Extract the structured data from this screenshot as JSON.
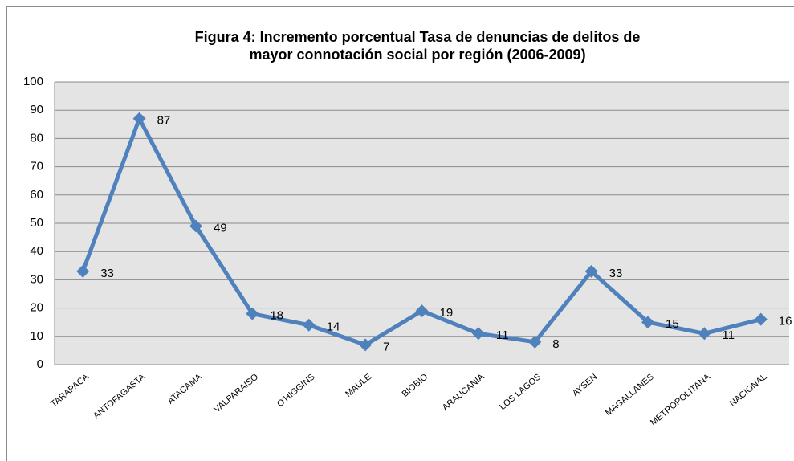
{
  "chart_data": {
    "type": "line",
    "title": [
      "Figura 4: Incremento porcentual Tasa de denuncias de delitos de",
      "mayor connotación social por región (2006-2009)"
    ],
    "categories": [
      "TARAPACA",
      "ANTOFAGASTA",
      "ATACAMA",
      "VALPARAISO",
      "O'HIGGINS",
      "MAULE",
      "BIOBIO",
      "ARAUCANIA",
      "LOS LAGOS",
      "AYSEN",
      "MAGALLANES",
      "METROPOLITANA",
      "NACIONAL"
    ],
    "series": [
      {
        "name": "Incremento porcentual",
        "color": "#4f81bd",
        "values": [
          33,
          87,
          49,
          18,
          14,
          7,
          19,
          11,
          8,
          33,
          15,
          11,
          16
        ]
      }
    ],
    "ylim": [
      0,
      100
    ],
    "yticks": [
      0,
      10,
      20,
      30,
      40,
      50,
      60,
      70,
      80,
      90,
      100
    ],
    "grid": true
  }
}
